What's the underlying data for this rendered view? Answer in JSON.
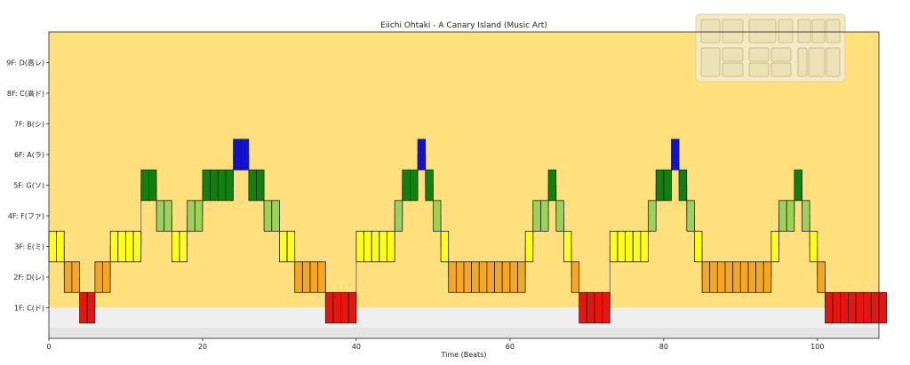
{
  "chart_data": {
    "type": "bar",
    "title": "Eiichi Ohtaki - A Canary Island (Music Art)",
    "xlabel": "Time (Beats)",
    "ylabel": "",
    "xlim": [
      0,
      108
    ],
    "ylim": [
      0.0,
      10.0
    ],
    "xticks": [
      0,
      20,
      40,
      60,
      80,
      100
    ],
    "yticks": [
      {
        "value": 1,
        "label": "1F: C(ド)"
      },
      {
        "value": 2,
        "label": "2F: D(レ)"
      },
      {
        "value": 3,
        "label": "3F: E(ミ)"
      },
      {
        "value": 4,
        "label": "4F: F(ファ)"
      },
      {
        "value": 5,
        "label": "5F: G(ソ)"
      },
      {
        "value": 6,
        "label": "6F: A(ラ)"
      },
      {
        "value": 7,
        "label": "7F: B(シ)"
      },
      {
        "value": 8,
        "label": "8F: C(高ド)"
      },
      {
        "value": 9,
        "label": "9F: D(高レ)"
      }
    ],
    "grid": false,
    "notes": [
      {
        "x": 0,
        "level": 3
      },
      {
        "x": 1,
        "level": 3
      },
      {
        "x": 2,
        "level": 2
      },
      {
        "x": 3,
        "level": 2
      },
      {
        "x": 4,
        "level": 1
      },
      {
        "x": 5,
        "level": 1
      },
      {
        "x": 6,
        "level": 2
      },
      {
        "x": 7,
        "level": 2
      },
      {
        "x": 8,
        "level": 3
      },
      {
        "x": 9,
        "level": 3
      },
      {
        "x": 10,
        "level": 3
      },
      {
        "x": 11,
        "level": 3
      },
      {
        "x": 12,
        "level": 5
      },
      {
        "x": 13,
        "level": 5
      },
      {
        "x": 14,
        "level": 4
      },
      {
        "x": 15,
        "level": 4
      },
      {
        "x": 16,
        "level": 3
      },
      {
        "x": 17,
        "level": 3
      },
      {
        "x": 18,
        "level": 4
      },
      {
        "x": 19,
        "level": 4
      },
      {
        "x": 20,
        "level": 5
      },
      {
        "x": 21,
        "level": 5
      },
      {
        "x": 22,
        "level": 5
      },
      {
        "x": 23,
        "level": 5
      },
      {
        "x": 24,
        "level": 6
      },
      {
        "x": 25,
        "level": 6
      },
      {
        "x": 26,
        "level": 5
      },
      {
        "x": 27,
        "level": 5
      },
      {
        "x": 28,
        "level": 4
      },
      {
        "x": 29,
        "level": 4
      },
      {
        "x": 30,
        "level": 3
      },
      {
        "x": 31,
        "level": 3
      },
      {
        "x": 32,
        "level": 2
      },
      {
        "x": 33,
        "level": 2
      },
      {
        "x": 34,
        "level": 2
      },
      {
        "x": 35,
        "level": 2
      },
      {
        "x": 36,
        "level": 1
      },
      {
        "x": 37,
        "level": 1
      },
      {
        "x": 38,
        "level": 1
      },
      {
        "x": 39,
        "level": 1
      },
      {
        "x": 40,
        "level": 3
      },
      {
        "x": 41,
        "level": 3
      },
      {
        "x": 42,
        "level": 3
      },
      {
        "x": 43,
        "level": 3
      },
      {
        "x": 44,
        "level": 3
      },
      {
        "x": 45,
        "level": 4
      },
      {
        "x": 46,
        "level": 5
      },
      {
        "x": 47,
        "level": 5
      },
      {
        "x": 48,
        "level": 6
      },
      {
        "x": 49,
        "level": 5
      },
      {
        "x": 50,
        "level": 4
      },
      {
        "x": 51,
        "level": 3
      },
      {
        "x": 52,
        "level": 2
      },
      {
        "x": 53,
        "level": 2
      },
      {
        "x": 54,
        "level": 2
      },
      {
        "x": 55,
        "level": 2
      },
      {
        "x": 56,
        "level": 2
      },
      {
        "x": 57,
        "level": 2
      },
      {
        "x": 58,
        "level": 2
      },
      {
        "x": 59,
        "level": 2
      },
      {
        "x": 60,
        "level": 2
      },
      {
        "x": 61,
        "level": 2
      },
      {
        "x": 62,
        "level": 3
      },
      {
        "x": 63,
        "level": 4
      },
      {
        "x": 64,
        "level": 4
      },
      {
        "x": 65,
        "level": 5
      },
      {
        "x": 66,
        "level": 4
      },
      {
        "x": 67,
        "level": 3
      },
      {
        "x": 68,
        "level": 2
      },
      {
        "x": 69,
        "level": 1
      },
      {
        "x": 70,
        "level": 1
      },
      {
        "x": 71,
        "level": 1
      },
      {
        "x": 72,
        "level": 1
      },
      {
        "x": 73,
        "level": 3
      },
      {
        "x": 74,
        "level": 3
      },
      {
        "x": 75,
        "level": 3
      },
      {
        "x": 76,
        "level": 3
      },
      {
        "x": 77,
        "level": 3
      },
      {
        "x": 78,
        "level": 4
      },
      {
        "x": 79,
        "level": 5
      },
      {
        "x": 80,
        "level": 5
      },
      {
        "x": 81,
        "level": 6
      },
      {
        "x": 82,
        "level": 5
      },
      {
        "x": 83,
        "level": 4
      },
      {
        "x": 84,
        "level": 3
      },
      {
        "x": 85,
        "level": 2
      },
      {
        "x": 86,
        "level": 2
      },
      {
        "x": 87,
        "level": 2
      },
      {
        "x": 88,
        "level": 2
      },
      {
        "x": 89,
        "level": 2
      },
      {
        "x": 90,
        "level": 2
      },
      {
        "x": 91,
        "level": 2
      },
      {
        "x": 92,
        "level": 2
      },
      {
        "x": 93,
        "level": 2
      },
      {
        "x": 94,
        "level": 3
      },
      {
        "x": 95,
        "level": 4
      },
      {
        "x": 96,
        "level": 4
      },
      {
        "x": 97,
        "level": 5
      },
      {
        "x": 98,
        "level": 4
      },
      {
        "x": 99,
        "level": 3
      },
      {
        "x": 100,
        "level": 2
      },
      {
        "x": 101,
        "level": 1
      },
      {
        "x": 102,
        "level": 1
      },
      {
        "x": 103,
        "level": 1
      },
      {
        "x": 104,
        "level": 1
      },
      {
        "x": 105,
        "level": 1
      },
      {
        "x": 106,
        "level": 1
      },
      {
        "x": 107,
        "level": 1
      },
      {
        "x": 108,
        "level": 1
      }
    ]
  },
  "colors": {
    "background_band": "#ffe07d",
    "ground_band": "#efefef",
    "ground_band_dark": "#dedede",
    "level_1": "#e8140f",
    "level_2": "#f5a623",
    "level_3": "#ffff1a",
    "level_4": "#9cd25a",
    "level_5": "#10800e",
    "level_6": "#1010dd",
    "inset_panel": "#f4eac4"
  },
  "inset_icon": "building-facade-icon"
}
